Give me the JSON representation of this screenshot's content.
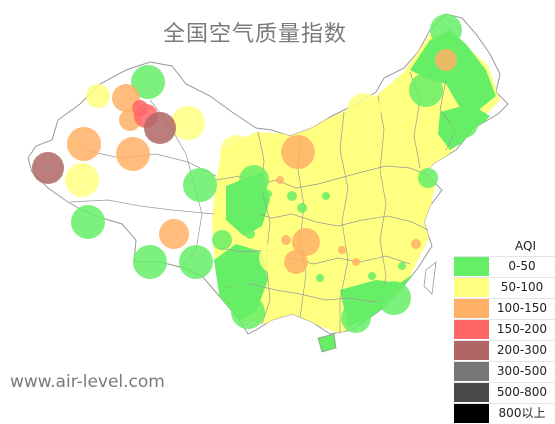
{
  "title": "全国空气质量指数",
  "watermark": "www.air-level.com",
  "legend": {
    "title": "AQI",
    "items": [
      {
        "label": "0-50",
        "color": "#66ee66"
      },
      {
        "label": "50-100",
        "color": "#ffff80"
      },
      {
        "label": "100-150",
        "color": "#ffb066"
      },
      {
        "label": "150-200",
        "color": "#ff6666"
      },
      {
        "label": "200-300",
        "color": "#b06666"
      },
      {
        "label": "300-500",
        "color": "#777777"
      },
      {
        "label": "500-800",
        "color": "#4a4a4a"
      },
      {
        "label": "800以上",
        "color": "#000000"
      }
    ]
  }
}
